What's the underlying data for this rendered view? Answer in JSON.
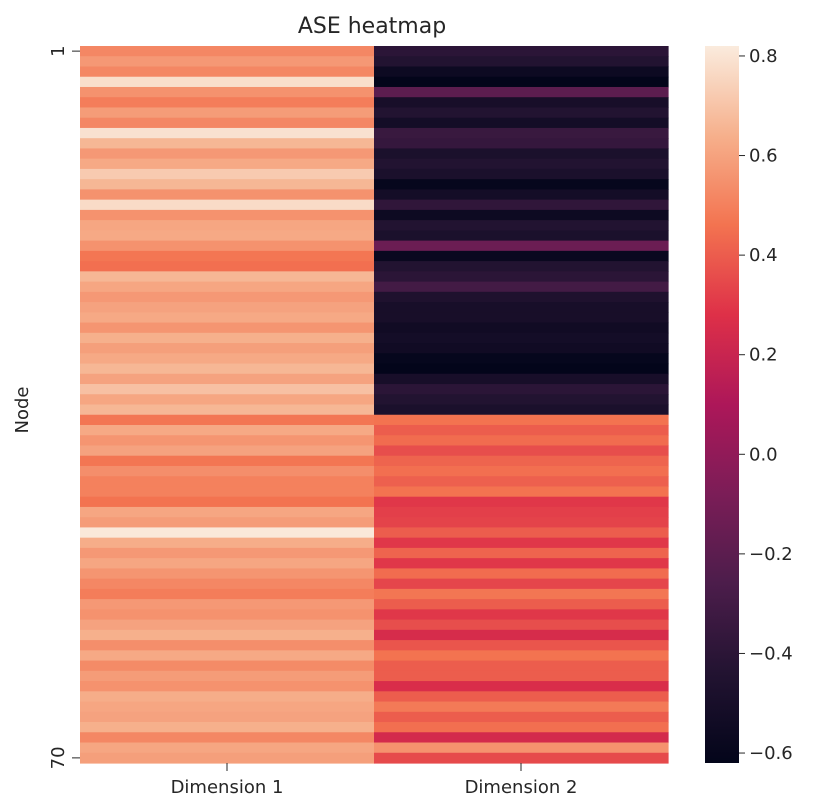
{
  "chart_data": {
    "type": "heatmap",
    "title": "ASE heatmap",
    "xlabel": "",
    "ylabel": "Node",
    "x_categories": [
      "Dimension 1",
      "Dimension 2"
    ],
    "y_tick_labels": [
      {
        "label": "1",
        "index": 0
      },
      {
        "label": "70",
        "index": 69
      }
    ],
    "colorbar": {
      "min": -0.62,
      "max": 0.82,
      "ticks": [
        -0.6,
        -0.4,
        -0.2,
        0.0,
        0.2,
        0.4,
        0.6,
        0.8
      ],
      "tick_labels": [
        "−0.6",
        "−0.4",
        "−0.2",
        "0.0",
        "0.2",
        "0.4",
        "0.6",
        "0.8"
      ],
      "colormap": "rocket"
    },
    "series": [
      {
        "values": [
          0.52,
          0.57,
          0.52,
          0.78,
          0.55,
          0.49,
          0.58,
          0.52,
          0.79,
          0.66,
          0.57,
          0.62,
          0.72,
          0.66,
          0.55,
          0.77,
          0.55,
          0.61,
          0.62,
          0.55,
          0.47,
          0.45,
          0.66,
          0.61,
          0.57,
          0.6,
          0.62,
          0.56,
          0.64,
          0.59,
          0.62,
          0.66,
          0.6,
          0.69,
          0.61,
          0.66,
          0.47,
          0.62,
          0.56,
          0.6,
          0.47,
          0.54,
          0.5,
          0.5,
          0.46,
          0.61,
          0.58,
          0.81,
          0.63,
          0.57,
          0.61,
          0.56,
          0.52,
          0.49,
          0.57,
          0.55,
          0.6,
          0.64,
          0.54,
          0.62,
          0.53,
          0.58,
          0.55,
          0.63,
          0.61,
          0.6,
          0.64,
          0.52,
          0.61,
          0.59
        ]
      },
      {
        "values": [
          -0.4,
          -0.44,
          -0.56,
          -0.62,
          -0.2,
          -0.5,
          -0.44,
          -0.52,
          -0.34,
          -0.36,
          -0.48,
          -0.44,
          -0.48,
          -0.6,
          -0.52,
          -0.38,
          -0.56,
          -0.44,
          -0.48,
          -0.14,
          -0.58,
          -0.44,
          -0.4,
          -0.3,
          -0.46,
          -0.5,
          -0.5,
          -0.54,
          -0.52,
          -0.54,
          -0.6,
          -0.62,
          -0.5,
          -0.4,
          -0.44,
          -0.48,
          0.46,
          0.4,
          0.44,
          0.36,
          0.42,
          0.45,
          0.41,
          0.46,
          0.3,
          0.32,
          0.33,
          0.4,
          0.3,
          0.42,
          0.3,
          0.44,
          0.34,
          0.47,
          0.4,
          0.3,
          0.36,
          0.25,
          0.38,
          0.46,
          0.4,
          0.4,
          0.26,
          0.4,
          0.48,
          0.4,
          0.45,
          0.24,
          0.55,
          0.35
        ]
      }
    ]
  }
}
